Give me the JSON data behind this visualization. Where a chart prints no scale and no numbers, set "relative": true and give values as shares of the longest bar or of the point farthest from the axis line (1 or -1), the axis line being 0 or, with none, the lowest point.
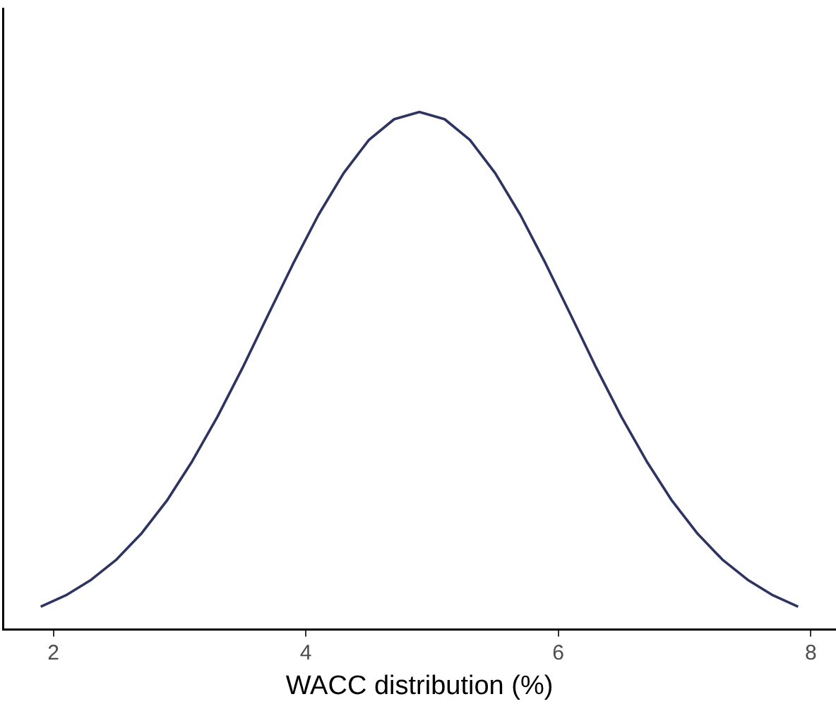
{
  "chart_data": {
    "type": "line",
    "xlabel": "WACC distribution (%)",
    "relative": true,
    "xlim": [
      1.6,
      8.2
    ],
    "xticks": [
      2,
      4,
      6,
      8
    ],
    "grid": false,
    "legend": false,
    "marker": "none",
    "line_style": "solid",
    "series": [
      {
        "color": "#2e3461",
        "x": [
          1.9,
          2.1,
          2.3,
          2.5,
          2.7,
          2.9,
          3.1,
          3.3,
          3.5,
          3.7,
          3.9,
          4.1,
          4.3,
          4.5,
          4.7,
          4.9,
          5.1,
          5.3,
          5.5,
          5.7,
          5.9,
          6.1,
          6.3,
          6.5,
          6.7,
          6.9,
          7.1,
          7.3,
          7.5,
          7.7,
          7.9
        ],
        "values": [
          0.044,
          0.066,
          0.096,
          0.135,
          0.186,
          0.249,
          0.325,
          0.411,
          0.506,
          0.607,
          0.707,
          0.801,
          0.882,
          0.946,
          0.986,
          1,
          0.986,
          0.946,
          0.882,
          0.801,
          0.707,
          0.607,
          0.506,
          0.411,
          0.325,
          0.249,
          0.186,
          0.135,
          0.096,
          0.066,
          0.044
        ]
      }
    ]
  }
}
